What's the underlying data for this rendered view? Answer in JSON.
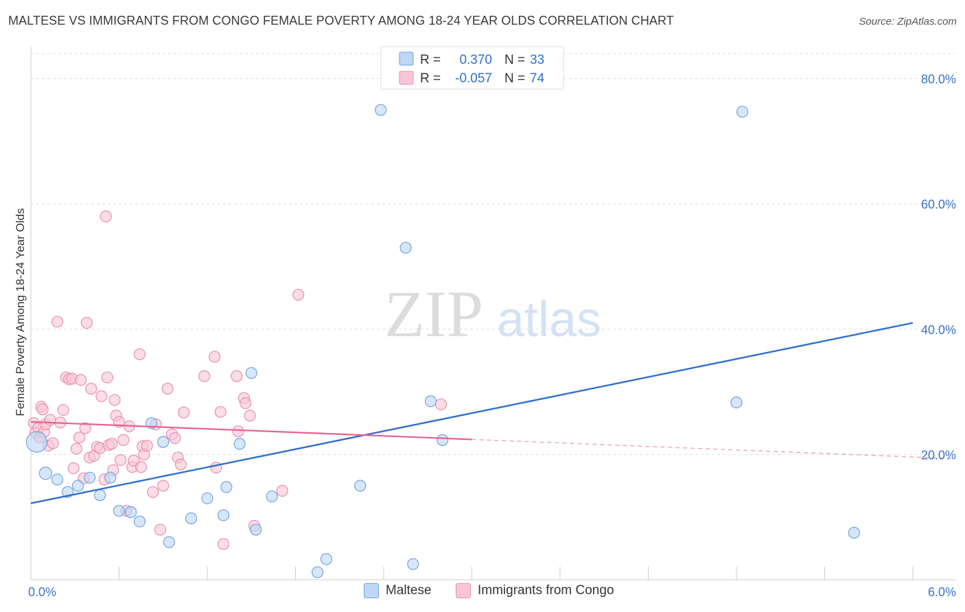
{
  "title": "MALTESE VS IMMIGRANTS FROM CONGO FEMALE POVERTY AMONG 18-24 YEAR OLDS CORRELATION CHART",
  "source": "Source: ZipAtlas.com",
  "watermark": {
    "zip": "ZIP",
    "atlas": "atlas"
  },
  "stats_legend": {
    "rows": [
      {
        "r_label": "R =",
        "r_value": "0.370",
        "n_label": "N =",
        "n_value": "33",
        "fill": "#bdd7f5",
        "stroke": "#6fa3e0"
      },
      {
        "r_label": "R =",
        "r_value": "-0.057",
        "n_label": "N =",
        "n_value": "74",
        "fill": "#f9c6d6",
        "stroke": "#e890ad"
      }
    ]
  },
  "bottom_legend": [
    {
      "label": "Maltese",
      "fill": "#bdd7f5",
      "stroke": "#6fa3e0"
    },
    {
      "label": "Immigrants from Congo",
      "fill": "#f9c6d6",
      "stroke": "#e890ad"
    }
  ],
  "chart_data": {
    "type": "scatter",
    "title": "MALTESE VS IMMIGRANTS FROM CONGO FEMALE POVERTY AMONG 18-24 YEAR OLDS CORRELATION CHART",
    "xlabel": "",
    "ylabel": "Female Poverty Among 18-24 Year Olds",
    "xlim": [
      0,
      6
    ],
    "ylim": [
      0,
      84
    ],
    "x_tick_labels": [
      {
        "value": 0,
        "label": "0.0%"
      },
      {
        "value": 6,
        "label": "6.0%"
      }
    ],
    "y_tick_labels": [
      {
        "value": 20,
        "label": "20.0%"
      },
      {
        "value": 40,
        "label": "40.0%"
      },
      {
        "value": 60,
        "label": "60.0%"
      },
      {
        "value": 80,
        "label": "80.0%"
      }
    ],
    "x_minor_ticks": [
      0.6,
      1.2,
      1.8,
      2.4,
      3.0,
      3.6,
      4.2,
      4.8,
      5.4,
      6.0
    ],
    "series": [
      {
        "name": "Maltese",
        "color": "#6fa3e0",
        "fill": "#bdd7f5",
        "points": [
          [
            0.04,
            22.0,
            15
          ],
          [
            0.1,
            17.0,
            9
          ],
          [
            0.18,
            16.0,
            8
          ],
          [
            0.25,
            14.0,
            8
          ],
          [
            0.32,
            15.0,
            8
          ],
          [
            0.4,
            16.3,
            8
          ],
          [
            0.47,
            13.5,
            8
          ],
          [
            0.54,
            16.3,
            8
          ],
          [
            0.6,
            11.0,
            8
          ],
          [
            0.68,
            10.8,
            8
          ],
          [
            0.74,
            9.3,
            8
          ],
          [
            0.82,
            25.0,
            8
          ],
          [
            0.9,
            22.0,
            8
          ],
          [
            0.94,
            6.0,
            8
          ],
          [
            1.09,
            9.8,
            8
          ],
          [
            1.2,
            13.0,
            8
          ],
          [
            1.31,
            10.3,
            8
          ],
          [
            1.33,
            14.8,
            8
          ],
          [
            1.42,
            21.7,
            8
          ],
          [
            1.5,
            33.0,
            8
          ],
          [
            1.53,
            8.0,
            8
          ],
          [
            1.64,
            13.3,
            8
          ],
          [
            1.95,
            1.2,
            8
          ],
          [
            2.01,
            3.3,
            8
          ],
          [
            2.24,
            15.0,
            8
          ],
          [
            2.38,
            75.0,
            8
          ],
          [
            2.55,
            53.0,
            8
          ],
          [
            2.6,
            2.5,
            8
          ],
          [
            2.72,
            28.5,
            8
          ],
          [
            2.8,
            22.3,
            8
          ],
          [
            4.8,
            28.3,
            8
          ],
          [
            4.84,
            74.7,
            8
          ],
          [
            5.6,
            7.5,
            8
          ]
        ]
      },
      {
        "name": "Immigrants from Congo",
        "color": "#e890ad",
        "fill": "#f9c6d6",
        "points": [
          [
            0.02,
            25.0,
            8
          ],
          [
            0.03,
            23.5,
            8
          ],
          [
            0.05,
            24.2,
            8
          ],
          [
            0.06,
            22.7,
            8
          ],
          [
            0.07,
            27.6,
            8
          ],
          [
            0.08,
            27.2,
            8
          ],
          [
            0.09,
            23.6,
            8
          ],
          [
            0.1,
            24.8,
            8
          ],
          [
            0.12,
            21.4,
            8
          ],
          [
            0.13,
            25.5,
            8
          ],
          [
            0.15,
            21.8,
            8
          ],
          [
            0.18,
            41.2,
            8
          ],
          [
            0.2,
            25.1,
            8
          ],
          [
            0.22,
            27.1,
            8
          ],
          [
            0.24,
            32.3,
            8
          ],
          [
            0.26,
            32.0,
            8
          ],
          [
            0.28,
            32.1,
            8
          ],
          [
            0.29,
            17.8,
            8
          ],
          [
            0.31,
            20.9,
            8
          ],
          [
            0.33,
            22.7,
            8
          ],
          [
            0.34,
            31.9,
            8
          ],
          [
            0.36,
            16.2,
            8
          ],
          [
            0.37,
            24.2,
            8
          ],
          [
            0.38,
            41.0,
            8
          ],
          [
            0.4,
            19.5,
            8
          ],
          [
            0.41,
            30.5,
            8
          ],
          [
            0.43,
            19.8,
            8
          ],
          [
            0.45,
            21.2,
            8
          ],
          [
            0.47,
            21.0,
            8
          ],
          [
            0.48,
            29.3,
            8
          ],
          [
            0.5,
            16.0,
            8
          ],
          [
            0.51,
            58.0,
            8
          ],
          [
            0.52,
            32.3,
            8
          ],
          [
            0.53,
            21.5,
            8
          ],
          [
            0.55,
            21.7,
            8
          ],
          [
            0.56,
            17.5,
            8
          ],
          [
            0.57,
            28.7,
            8
          ],
          [
            0.58,
            26.2,
            8
          ],
          [
            0.6,
            25.2,
            8
          ],
          [
            0.61,
            19.1,
            8
          ],
          [
            0.63,
            22.3,
            8
          ],
          [
            0.65,
            11.0,
            8
          ],
          [
            0.67,
            24.5,
            8
          ],
          [
            0.69,
            18.0,
            8
          ],
          [
            0.7,
            19.0,
            8
          ],
          [
            0.74,
            36.0,
            8
          ],
          [
            0.75,
            18.0,
            8
          ],
          [
            0.76,
            21.3,
            8
          ],
          [
            0.77,
            20.0,
            8
          ],
          [
            0.79,
            21.4,
            8
          ],
          [
            0.83,
            14.0,
            8
          ],
          [
            0.85,
            24.8,
            8
          ],
          [
            0.88,
            8.0,
            8
          ],
          [
            0.9,
            15.0,
            8
          ],
          [
            0.93,
            30.5,
            8
          ],
          [
            0.96,
            23.2,
            8
          ],
          [
            0.98,
            22.6,
            8
          ],
          [
            1.0,
            19.5,
            8
          ],
          [
            1.02,
            18.4,
            8
          ],
          [
            1.04,
            26.7,
            8
          ],
          [
            1.18,
            32.5,
            8
          ],
          [
            1.25,
            35.6,
            8
          ],
          [
            1.26,
            17.9,
            8
          ],
          [
            1.29,
            26.8,
            8
          ],
          [
            1.31,
            5.7,
            8
          ],
          [
            1.4,
            32.5,
            8
          ],
          [
            1.41,
            23.7,
            8
          ],
          [
            1.45,
            29.0,
            8
          ],
          [
            1.46,
            28.2,
            8
          ],
          [
            1.49,
            26.2,
            8
          ],
          [
            1.52,
            8.6,
            8
          ],
          [
            1.71,
            14.2,
            8
          ],
          [
            1.82,
            45.5,
            8
          ],
          [
            2.79,
            28.0,
            8
          ]
        ]
      }
    ],
    "trend_lines": [
      {
        "series": "Maltese",
        "color": "#2f6fce",
        "x0": 0,
        "y0": 12.2,
        "x1": 6.0,
        "y1": 41.0,
        "dashed_from": null
      },
      {
        "series": "Immigrants from Congo",
        "color": "#e8608f",
        "x0": 0,
        "y0": 25.2,
        "x1": 6.0,
        "y1": 19.6,
        "dashed_from": 3.0
      }
    ]
  }
}
